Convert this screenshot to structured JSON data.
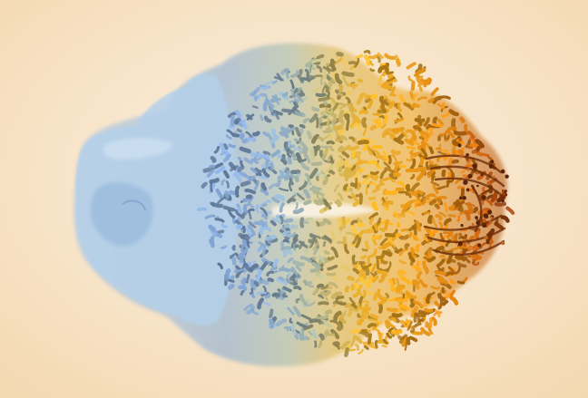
{
  "image": {
    "subject": "cryo-em-density-map",
    "colors": {
      "background_center": "#fbf2e4",
      "background_edge": "#f4d8b0",
      "blue_light": "#b4d0ea",
      "blue": "#7fa8d6",
      "blue_dark": "#5b86b8",
      "teal": "#9fb8a8",
      "khaki": "#c9b878",
      "amber": "#eeb12a",
      "orange": "#e58a12",
      "rust": "#a9420f",
      "dark_brown": "#5a2408"
    }
  }
}
